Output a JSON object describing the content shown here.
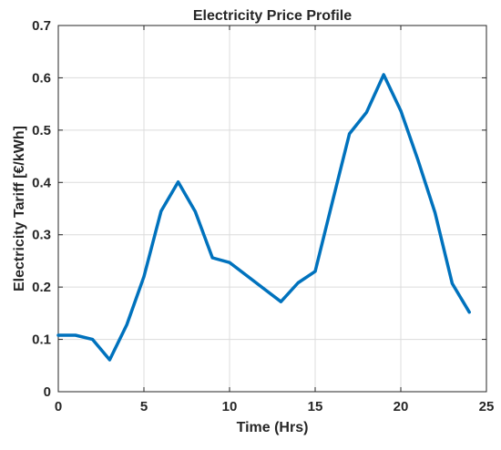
{
  "chart_data": {
    "type": "line",
    "title": "Electricity Price Profile",
    "xlabel": "Time (Hrs)",
    "ylabel": "Electricity Tariff [€/kWh]",
    "xlim": [
      0,
      25
    ],
    "ylim": [
      0,
      0.7
    ],
    "xticks": [
      0,
      5,
      10,
      15,
      20,
      25
    ],
    "yticks": [
      0,
      0.1,
      0.2,
      0.3,
      0.4,
      0.5,
      0.6,
      0.7
    ],
    "grid": true,
    "series": [
      {
        "color": "#0072BD",
        "x": [
          0,
          1,
          2,
          3,
          4,
          5,
          6,
          7,
          8,
          9,
          10,
          11,
          12,
          13,
          14,
          15,
          16,
          17,
          18,
          19,
          20,
          21,
          22,
          23,
          24
        ],
        "y": [
          0.108,
          0.108,
          0.1,
          0.061,
          0.128,
          0.22,
          0.345,
          0.401,
          0.344,
          0.256,
          0.247,
          0.222,
          0.197,
          0.172,
          0.208,
          0.23,
          0.362,
          0.493,
          0.534,
          0.606,
          0.537,
          0.443,
          0.342,
          0.207,
          0.152
        ]
      }
    ]
  },
  "colors": {
    "axis": "#262626",
    "grid": "#dcdcdc",
    "line": "#0072BD"
  }
}
